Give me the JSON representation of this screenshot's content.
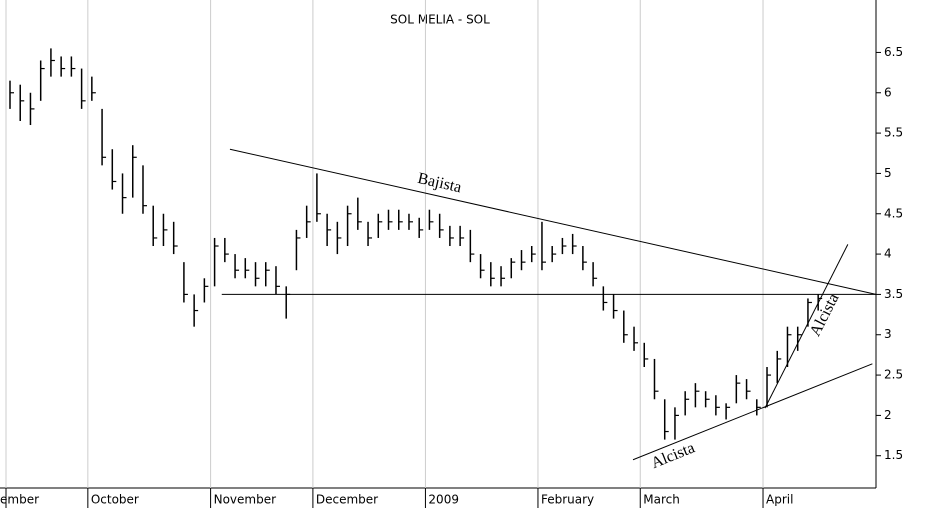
{
  "chart_data": {
    "type": "ohlc",
    "title": "SOL MELIA - SOL",
    "categories": [
      "ember",
      null,
      null,
      null,
      null,
      null,
      null,
      null,
      "October",
      null,
      null,
      null,
      null,
      null,
      null,
      null,
      null,
      null,
      null,
      null,
      "November",
      null,
      null,
      null,
      null,
      null,
      null,
      null,
      null,
      null,
      "December",
      null,
      null,
      null,
      null,
      null,
      null,
      null,
      null,
      null,
      null,
      "2009",
      null,
      null,
      null,
      null,
      null,
      null,
      null,
      null,
      null,
      null,
      "February",
      null,
      null,
      null,
      null,
      null,
      null,
      null,
      null,
      null,
      "March",
      null,
      null,
      null,
      null,
      null,
      null,
      null,
      null,
      null,
      null,
      null,
      "April",
      null,
      null,
      null,
      null,
      null
    ],
    "high": [
      6.15,
      6.1,
      6.0,
      6.4,
      6.55,
      6.45,
      6.45,
      6.3,
      6.2,
      5.8,
      5.3,
      5.0,
      5.35,
      5.1,
      4.6,
      4.5,
      4.4,
      3.9,
      3.5,
      3.7,
      4.2,
      4.2,
      4.0,
      3.95,
      3.9,
      3.9,
      3.85,
      3.6,
      4.3,
      4.6,
      5.0,
      4.5,
      4.4,
      4.6,
      4.7,
      4.4,
      4.5,
      4.55,
      4.55,
      4.5,
      4.45,
      4.55,
      4.5,
      4.35,
      4.35,
      4.3,
      4.0,
      3.9,
      3.85,
      3.95,
      4.05,
      4.1,
      4.4,
      4.1,
      4.2,
      4.25,
      4.1,
      3.9,
      3.6,
      3.5,
      3.3,
      3.1,
      2.9,
      2.7,
      2.2,
      2.1,
      2.3,
      2.4,
      2.3,
      2.25,
      2.15,
      2.5,
      2.45,
      2.2,
      2.6,
      2.8,
      3.1,
      3.1,
      3.45,
      3.5
    ],
    "low": [
      5.8,
      5.65,
      5.6,
      5.9,
      6.2,
      6.2,
      6.2,
      5.8,
      5.9,
      5.1,
      4.8,
      4.5,
      4.7,
      4.5,
      4.1,
      4.1,
      4.0,
      3.4,
      3.1,
      3.4,
      3.6,
      3.9,
      3.7,
      3.7,
      3.6,
      3.6,
      3.5,
      3.2,
      3.8,
      4.2,
      4.4,
      4.1,
      4.0,
      4.1,
      4.3,
      4.1,
      4.2,
      4.3,
      4.3,
      4.3,
      4.2,
      4.3,
      4.2,
      4.1,
      4.1,
      3.9,
      3.7,
      3.6,
      3.6,
      3.7,
      3.8,
      3.9,
      3.8,
      3.9,
      4.0,
      4.0,
      3.8,
      3.6,
      3.3,
      3.2,
      2.9,
      2.8,
      2.6,
      2.2,
      1.7,
      1.7,
      2.0,
      2.1,
      2.1,
      2.0,
      1.95,
      2.15,
      2.2,
      2.0,
      2.1,
      2.4,
      2.6,
      2.8,
      3.1,
      3.3
    ],
    "close": [
      6.0,
      5.9,
      5.8,
      6.3,
      6.4,
      6.3,
      6.3,
      5.9,
      6.0,
      5.2,
      4.9,
      4.7,
      5.2,
      4.6,
      4.2,
      4.3,
      4.1,
      3.5,
      3.3,
      3.6,
      4.1,
      4.0,
      3.8,
      3.8,
      3.7,
      3.8,
      3.6,
      3.5,
      4.2,
      4.4,
      4.5,
      4.3,
      4.2,
      4.5,
      4.4,
      4.2,
      4.4,
      4.4,
      4.4,
      4.4,
      4.3,
      4.4,
      4.3,
      4.2,
      4.2,
      4.0,
      3.8,
      3.7,
      3.7,
      3.9,
      3.9,
      4.0,
      3.9,
      4.0,
      4.1,
      4.1,
      3.9,
      3.7,
      3.4,
      3.3,
      3.0,
      2.9,
      2.7,
      2.3,
      1.8,
      2.0,
      2.2,
      2.3,
      2.2,
      2.1,
      2.1,
      2.4,
      2.3,
      2.1,
      2.5,
      2.7,
      3.0,
      3.0,
      3.4,
      3.45
    ],
    "color": "#000000",
    "ylim": [
      1.1,
      7.15
    ],
    "yticks": [
      1.5,
      2.0,
      2.5,
      3.0,
      3.5,
      4.0,
      4.5,
      5.0,
      5.5,
      6.0,
      6.5
    ],
    "trendlines": [
      {
        "label": "Bajista",
        "x": [
          21.5,
          84.65
        ],
        "y": [
          5.3,
          3.5
        ]
      },
      {
        "label": null,
        "x": [
          20.7,
          84.65
        ],
        "y": [
          3.5,
          3.5
        ]
      },
      {
        "label": "Alcista",
        "x": [
          60.9,
          84.3
        ],
        "y": [
          1.45,
          2.64
        ]
      },
      {
        "label": "Alcista",
        "x": [
          73.8,
          81.9
        ],
        "y": [
          2.09,
          4.12
        ]
      }
    ]
  }
}
